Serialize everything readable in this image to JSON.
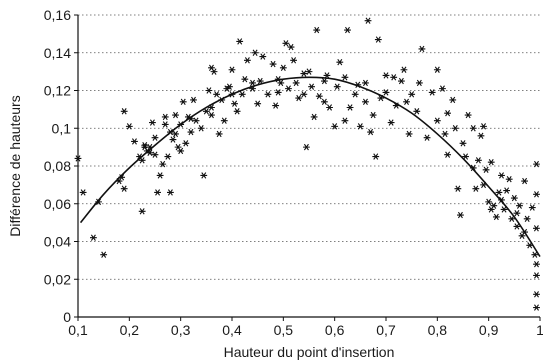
{
  "chart_data": {
    "type": "scatter",
    "title": "",
    "xlabel": "Hauteur du point d'insertion",
    "ylabel": "Différence de hauteurs",
    "xlim": [
      0.1,
      1
    ],
    "ylim": [
      0,
      0.16
    ],
    "x_ticks": [
      0.1,
      0.2,
      0.3,
      0.4,
      0.5,
      0.6,
      0.7,
      0.8,
      0.9,
      1
    ],
    "x_tick_labels": [
      "0,1",
      "0,2",
      "0,3",
      "0,4",
      "0,5",
      "0,6",
      "0,7",
      "0,8",
      "0,9",
      "1"
    ],
    "y_ticks": [
      0,
      0.02,
      0.04,
      0.06,
      0.08,
      0.1,
      0.12,
      0.14,
      0.16
    ],
    "y_tick_labels": [
      "0",
      "0,02",
      "0,04",
      "0,06",
      "0,08",
      "0,1",
      "0,12",
      "0,14",
      "0,16"
    ],
    "grid": {
      "y": true,
      "x": false,
      "style": "dotted"
    },
    "legend": "none",
    "series": [
      {
        "marker": "asterisk",
        "points": [
          [
            0.1,
            0.084
          ],
          [
            0.11,
            0.066
          ],
          [
            0.13,
            0.042
          ],
          [
            0.14,
            0.061
          ],
          [
            0.15,
            0.033
          ],
          [
            0.18,
            0.072
          ],
          [
            0.185,
            0.074
          ],
          [
            0.19,
            0.068
          ],
          [
            0.19,
            0.109
          ],
          [
            0.2,
            0.101
          ],
          [
            0.21,
            0.093
          ],
          [
            0.22,
            0.085
          ],
          [
            0.225,
            0.056
          ],
          [
            0.23,
            0.091
          ],
          [
            0.23,
            0.09
          ],
          [
            0.235,
            0.088
          ],
          [
            0.24,
            0.09
          ],
          [
            0.24,
            0.087
          ],
          [
            0.245,
            0.103
          ],
          [
            0.25,
            0.095
          ],
          [
            0.255,
            0.066
          ],
          [
            0.26,
            0.075
          ],
          [
            0.265,
            0.081
          ],
          [
            0.27,
            0.106
          ],
          [
            0.27,
            0.102
          ],
          [
            0.275,
            0.085
          ],
          [
            0.28,
            0.066
          ],
          [
            0.285,
            0.094
          ],
          [
            0.29,
            0.107
          ],
          [
            0.29,
            0.097
          ],
          [
            0.295,
            0.09
          ],
          [
            0.3,
            0.102
          ],
          [
            0.3,
            0.088
          ],
          [
            0.305,
            0.114
          ],
          [
            0.31,
            0.092
          ],
          [
            0.315,
            0.106
          ],
          [
            0.32,
            0.098
          ],
          [
            0.325,
            0.115
          ],
          [
            0.33,
            0.104
          ],
          [
            0.34,
            0.1
          ],
          [
            0.345,
            0.075
          ],
          [
            0.35,
            0.109
          ],
          [
            0.355,
            0.12
          ],
          [
            0.36,
            0.107
          ],
          [
            0.36,
            0.132
          ],
          [
            0.365,
            0.13
          ],
          [
            0.37,
            0.118
          ],
          [
            0.375,
            0.097
          ],
          [
            0.38,
            0.115
          ],
          [
            0.385,
            0.104
          ],
          [
            0.39,
            0.121
          ],
          [
            0.395,
            0.122
          ],
          [
            0.4,
            0.131
          ],
          [
            0.405,
            0.113
          ],
          [
            0.41,
            0.109
          ],
          [
            0.415,
            0.146
          ],
          [
            0.42,
            0.118
          ],
          [
            0.425,
            0.126
          ],
          [
            0.43,
            0.136
          ],
          [
            0.44,
            0.121
          ],
          [
            0.445,
            0.14
          ],
          [
            0.45,
            0.113
          ],
          [
            0.455,
            0.125
          ],
          [
            0.46,
            0.138
          ],
          [
            0.47,
            0.118
          ],
          [
            0.48,
            0.134
          ],
          [
            0.485,
            0.112
          ],
          [
            0.49,
            0.119
          ],
          [
            0.495,
            0.124
          ],
          [
            0.5,
            0.132
          ],
          [
            0.505,
            0.145
          ],
          [
            0.51,
            0.121
          ],
          [
            0.515,
            0.143
          ],
          [
            0.52,
            0.136
          ],
          [
            0.525,
            0.124
          ],
          [
            0.53,
            0.116
          ],
          [
            0.54,
            0.118
          ],
          [
            0.545,
            0.09
          ],
          [
            0.55,
            0.13
          ],
          [
            0.555,
            0.122
          ],
          [
            0.56,
            0.106
          ],
          [
            0.565,
            0.152
          ],
          [
            0.57,
            0.117
          ],
          [
            0.58,
            0.114
          ],
          [
            0.585,
            0.128
          ],
          [
            0.59,
            0.111
          ],
          [
            0.6,
            0.101
          ],
          [
            0.605,
            0.122
          ],
          [
            0.61,
            0.135
          ],
          [
            0.62,
            0.104
          ],
          [
            0.625,
            0.152
          ],
          [
            0.63,
            0.111
          ],
          [
            0.64,
            0.118
          ],
          [
            0.645,
            0.123
          ],
          [
            0.65,
            0.101
          ],
          [
            0.66,
            0.114
          ],
          [
            0.665,
            0.157
          ],
          [
            0.67,
            0.098
          ],
          [
            0.675,
            0.107
          ],
          [
            0.68,
            0.085
          ],
          [
            0.685,
            0.147
          ],
          [
            0.69,
            0.116
          ],
          [
            0.7,
            0.119
          ],
          [
            0.71,
            0.103
          ],
          [
            0.715,
            0.127
          ],
          [
            0.72,
            0.112
          ],
          [
            0.73,
            0.125
          ],
          [
            0.74,
            0.114
          ],
          [
            0.745,
            0.097
          ],
          [
            0.75,
            0.118
          ],
          [
            0.76,
            0.109
          ],
          [
            0.77,
            0.142
          ],
          [
            0.78,
            0.095
          ],
          [
            0.79,
            0.119
          ],
          [
            0.8,
            0.131
          ],
          [
            0.81,
            0.121
          ],
          [
            0.815,
            0.097
          ],
          [
            0.82,
            0.086
          ],
          [
            0.83,
            0.115
          ],
          [
            0.835,
            0.1
          ],
          [
            0.84,
            0.068
          ],
          [
            0.845,
            0.054
          ],
          [
            0.85,
            0.092
          ],
          [
            0.86,
            0.107
          ],
          [
            0.87,
            0.1
          ],
          [
            0.875,
            0.068
          ],
          [
            0.88,
            0.083
          ],
          [
            0.885,
            0.096
          ],
          [
            0.89,
            0.101
          ],
          [
            0.895,
            0.078
          ],
          [
            0.9,
            0.061
          ],
          [
            0.905,
            0.082
          ],
          [
            0.91,
            0.059
          ],
          [
            0.915,
            0.053
          ],
          [
            0.92,
            0.066
          ],
          [
            0.925,
            0.075
          ],
          [
            0.93,
            0.057
          ],
          [
            0.935,
            0.067
          ],
          [
            0.94,
            0.073
          ],
          [
            0.945,
            0.052
          ],
          [
            0.95,
            0.063
          ],
          [
            0.955,
            0.048
          ],
          [
            0.96,
            0.059
          ],
          [
            0.965,
            0.043
          ],
          [
            0.97,
            0.072
          ],
          [
            0.975,
            0.052
          ],
          [
            0.98,
            0.038
          ],
          [
            0.985,
            0.058
          ],
          [
            0.99,
            0.033
          ],
          [
            0.993,
            0.047
          ],
          [
            0.996,
            0.081
          ],
          [
            0.998,
            0.028
          ],
          [
            1.0,
            0.012
          ],
          [
            1.0,
            0.022
          ],
          [
            1.0,
            0.005
          ],
          [
            0.995,
            0.065
          ],
          [
            0.97,
            0.045
          ],
          [
            0.955,
            0.055
          ],
          [
            0.925,
            0.062
          ],
          [
            0.905,
            0.057
          ],
          [
            0.89,
            0.07
          ],
          [
            0.87,
            0.079
          ],
          [
            0.855,
            0.085
          ],
          [
            0.82,
            0.108
          ],
          [
            0.8,
            0.104
          ],
          [
            0.765,
            0.124
          ],
          [
            0.735,
            0.131
          ],
          [
            0.7,
            0.128
          ],
          [
            0.66,
            0.124
          ],
          [
            0.62,
            0.127
          ],
          [
            0.58,
            0.125
          ],
          [
            0.54,
            0.129
          ],
          [
            0.49,
            0.126
          ],
          [
            0.44,
            0.124
          ],
          [
            0.4,
            0.118
          ],
          [
            0.36,
            0.111
          ],
          [
            0.32,
            0.105
          ],
          [
            0.28,
            0.098
          ],
          [
            0.25,
            0.086
          ],
          [
            0.225,
            0.083
          ]
        ]
      },
      {
        "type": "line",
        "style": "smooth",
        "points": [
          [
            0.105,
            0.05
          ],
          [
            0.15,
            0.065
          ],
          [
            0.2,
            0.079
          ],
          [
            0.25,
            0.091
          ],
          [
            0.3,
            0.102
          ],
          [
            0.35,
            0.111
          ],
          [
            0.4,
            0.118
          ],
          [
            0.45,
            0.123
          ],
          [
            0.5,
            0.126
          ],
          [
            0.55,
            0.127
          ],
          [
            0.6,
            0.126
          ],
          [
            0.65,
            0.122
          ],
          [
            0.7,
            0.116
          ],
          [
            0.75,
            0.108
          ],
          [
            0.8,
            0.097
          ],
          [
            0.85,
            0.084
          ],
          [
            0.9,
            0.069
          ],
          [
            0.95,
            0.053
          ],
          [
            1.0,
            0.032
          ]
        ]
      }
    ]
  }
}
